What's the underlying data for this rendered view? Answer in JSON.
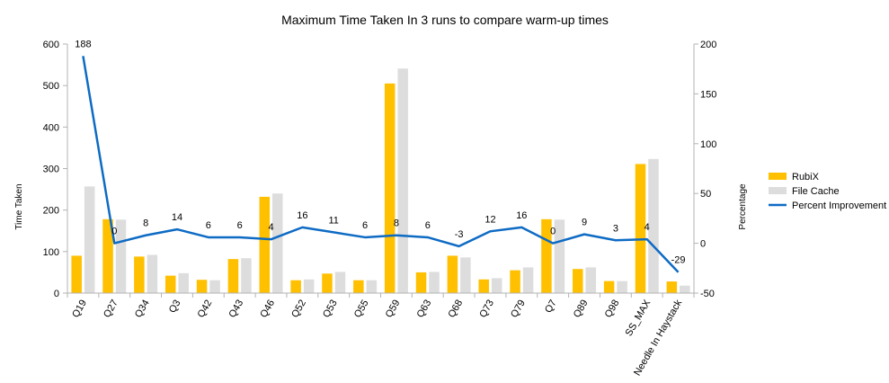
{
  "chart_data": {
    "type": "bar",
    "title": "Maximum Time Taken In 3 runs to compare warm-up times",
    "ylabel": "Time Taken",
    "y2label": "Percentage",
    "ylim": [
      0,
      600
    ],
    "yticks": [
      0,
      100,
      200,
      300,
      400,
      500,
      600
    ],
    "y2lim": [
      -50,
      200
    ],
    "y2ticks": [
      -50,
      0,
      50,
      100,
      150,
      200
    ],
    "grid": false,
    "legend_position": "right",
    "categories": [
      "Q19",
      "Q27",
      "Q34",
      "Q3",
      "Q42",
      "Q43",
      "Q46",
      "Q52",
      "Q53",
      "Q55",
      "Q59",
      "Q63",
      "Q68",
      "Q73",
      "Q79",
      "Q7",
      "Q89",
      "Q98",
      "SS_MAX",
      "Needle In Haystack"
    ],
    "series": [
      {
        "name": "RubiX",
        "type": "bar",
        "axis": "left",
        "color": "#FFC000",
        "values": [
          90,
          178,
          88,
          42,
          32,
          82,
          232,
          31,
          47,
          31,
          505,
          50,
          90,
          33,
          55,
          178,
          58,
          29,
          311,
          28
        ]
      },
      {
        "name": "File Cache",
        "type": "bar",
        "axis": "left",
        "color": "#DDDDDD",
        "values": [
          257,
          177,
          92,
          48,
          31,
          84,
          240,
          33,
          51,
          31,
          541,
          51,
          86,
          36,
          62,
          177,
          62,
          29,
          323,
          18
        ]
      },
      {
        "name": "Percent Improvement",
        "type": "line",
        "axis": "right",
        "color": "#0E6BC4",
        "values": [
          188,
          0,
          8,
          14,
          6,
          6,
          4,
          16,
          11,
          6,
          8,
          6,
          -3,
          12,
          16,
          0,
          9,
          3,
          4,
          -29
        ],
        "labels": [
          "188",
          "0",
          "8",
          "14",
          "6",
          "6",
          "4",
          "16",
          "11",
          "6",
          "8",
          "6",
          "-3",
          "12",
          "16",
          "0",
          "9",
          "3",
          "4",
          "-29"
        ]
      }
    ]
  }
}
